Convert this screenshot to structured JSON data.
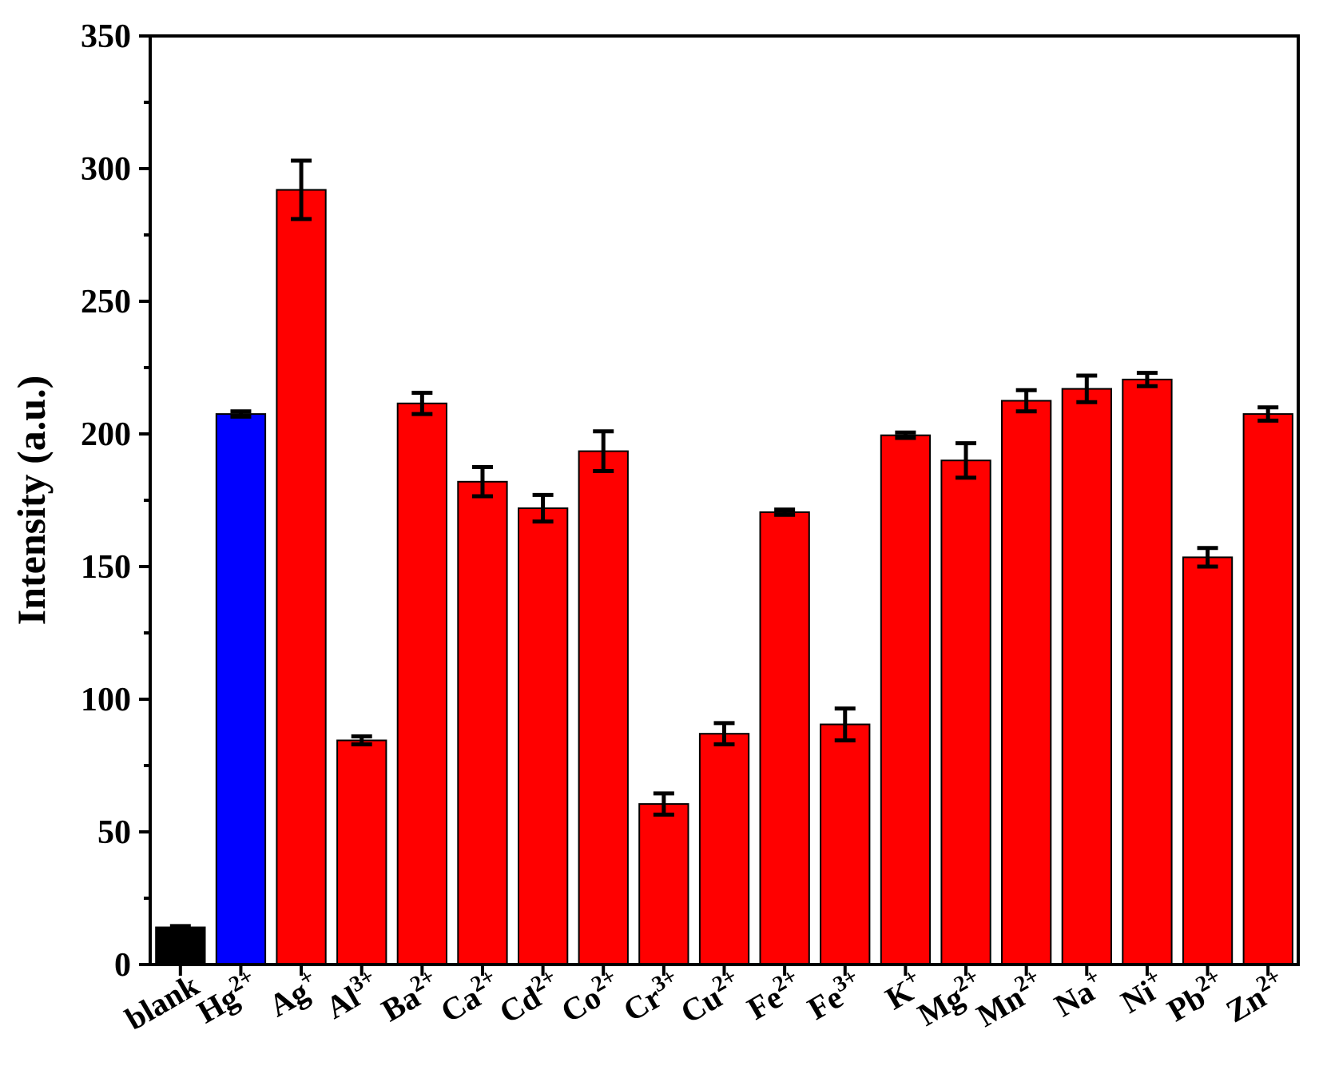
{
  "chart_data": {
    "type": "bar",
    "title": "",
    "xlabel": "",
    "ylabel": "Intensity (a.u.)",
    "ylim": [
      0,
      350
    ],
    "yticks": [
      "0",
      "50",
      "100",
      "150",
      "200",
      "250",
      "300",
      "350"
    ],
    "grid": false,
    "categories": [
      {
        "base": "blank",
        "sup": ""
      },
      {
        "base": "Hg",
        "sup": "2+"
      },
      {
        "base": "Ag",
        "sup": "+"
      },
      {
        "base": "Al",
        "sup": "3+"
      },
      {
        "base": "Ba",
        "sup": "2+"
      },
      {
        "base": "Ca",
        "sup": "2+"
      },
      {
        "base": "Cd",
        "sup": "2+"
      },
      {
        "base": "Co",
        "sup": "2+"
      },
      {
        "base": "Cr",
        "sup": "3+"
      },
      {
        "base": "Cu",
        "sup": "2+"
      },
      {
        "base": "Fe",
        "sup": "2+"
      },
      {
        "base": "Fe",
        "sup": "3+"
      },
      {
        "base": "K",
        "sup": "+"
      },
      {
        "base": "Mg",
        "sup": "2+"
      },
      {
        "base": "Mn",
        "sup": "2+"
      },
      {
        "base": "Na",
        "sup": "+"
      },
      {
        "base": "Ni",
        "sup": "+"
      },
      {
        "base": "Pb",
        "sup": "2+"
      },
      {
        "base": "Zn",
        "sup": "2+"
      }
    ],
    "values": [
      14,
      207.5,
      292,
      84.5,
      211.5,
      182,
      172,
      193.5,
      60.5,
      87,
      170.5,
      90.5,
      199.5,
      190,
      212.5,
      217,
      220.5,
      153.5,
      207.5
    ],
    "errors": [
      0.5,
      1,
      11,
      1.5,
      4,
      5.5,
      5,
      7.5,
      4,
      4,
      1,
      6,
      1,
      6.5,
      4,
      5,
      2.5,
      3.5,
      2.5
    ],
    "colors": [
      "#000000",
      "#0000ff",
      "#ff0000",
      "#ff0000",
      "#ff0000",
      "#ff0000",
      "#ff0000",
      "#ff0000",
      "#ff0000",
      "#ff0000",
      "#ff0000",
      "#ff0000",
      "#ff0000",
      "#ff0000",
      "#ff0000",
      "#ff0000",
      "#ff0000",
      "#ff0000",
      "#ff0000"
    ]
  }
}
